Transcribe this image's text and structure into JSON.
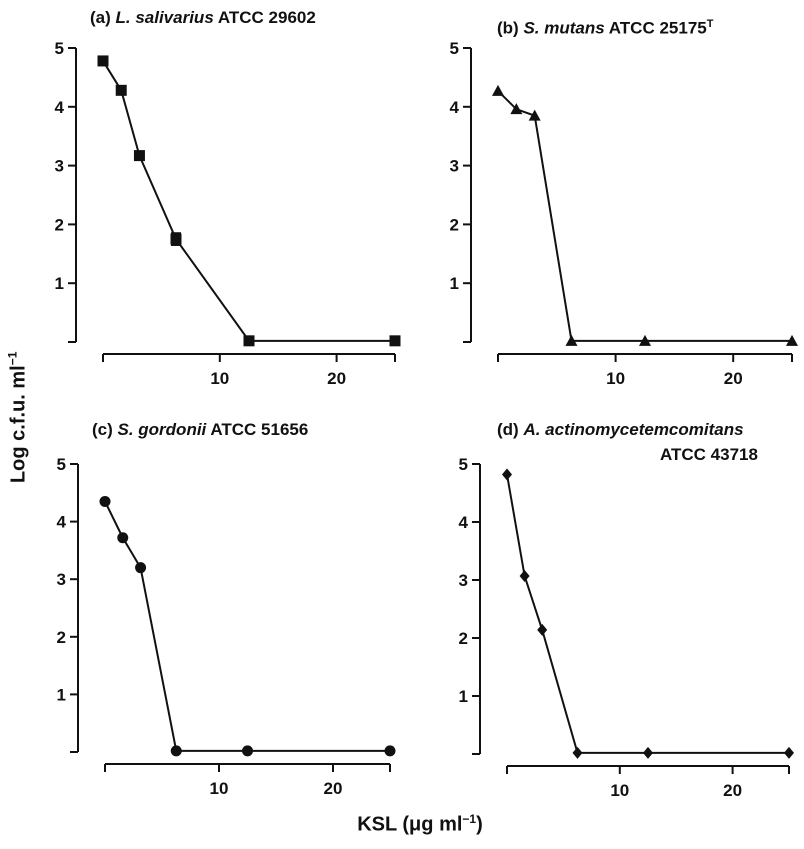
{
  "figure": {
    "ylabel_main": "Log c.f.u. ml",
    "ylabel_sup": "−1",
    "xlabel_main": "KSL  (μg ml",
    "xlabel_sup": "−1",
    "xlabel_close": ")"
  },
  "chart_data": [
    {
      "type": "line",
      "title_prefix": "(a) ",
      "title_species": "L. salivarius",
      "title_strain": " ATCC 29602",
      "title_sup": "",
      "title_line2": "",
      "marker": "square",
      "x": [
        0,
        1.56,
        3.12,
        6.25,
        12.5,
        25
      ],
      "y": [
        4.78,
        4.28,
        3.17,
        1.75,
        0.02,
        0.02
      ],
      "error": [
        0,
        0,
        0,
        0.1,
        0,
        0
      ],
      "xlim": [
        0,
        25
      ],
      "ylim": [
        0,
        5
      ],
      "xticks": [
        10,
        20
      ],
      "yticks": [
        1,
        2,
        3,
        4,
        5
      ]
    },
    {
      "type": "line",
      "title_prefix": "(b) ",
      "title_species": "S. mutans",
      "title_strain": " ATCC 25175",
      "title_sup": "T",
      "title_line2": "",
      "marker": "triangle",
      "x": [
        0,
        1.56,
        3.12,
        6.25,
        12.5,
        25
      ],
      "y": [
        4.27,
        3.96,
        3.85,
        0.02,
        0.02,
        0.02
      ],
      "error": [
        0,
        0,
        0,
        0,
        0,
        0
      ],
      "xlim": [
        0,
        25
      ],
      "ylim": [
        0,
        5
      ],
      "xticks": [
        10,
        20
      ],
      "yticks": [
        1,
        2,
        3,
        4,
        5
      ]
    },
    {
      "type": "line",
      "title_prefix": "(c) ",
      "title_species": "S. gordonii",
      "title_strain": " ATCC 51656",
      "title_sup": "",
      "title_line2": "",
      "marker": "circle",
      "x": [
        0,
        1.56,
        3.12,
        6.25,
        12.5,
        25
      ],
      "y": [
        4.35,
        3.72,
        3.2,
        0.02,
        0.02,
        0.02
      ],
      "error": [
        0,
        0,
        0,
        0,
        0,
        0
      ],
      "xlim": [
        0,
        25
      ],
      "ylim": [
        0,
        5
      ],
      "xticks": [
        10,
        20
      ],
      "yticks": [
        1,
        2,
        3,
        4,
        5
      ]
    },
    {
      "type": "line",
      "title_prefix": "(d) ",
      "title_species": "A. actinomycetemcomitans",
      "title_strain": "",
      "title_sup": "",
      "title_line2": "ATCC 43718",
      "marker": "diamond",
      "x": [
        0,
        1.56,
        3.12,
        6.25,
        12.5,
        25
      ],
      "y": [
        4.82,
        3.07,
        2.14,
        0.02,
        0.02,
        0.02
      ],
      "error": [
        0,
        0,
        0,
        0,
        0,
        0
      ],
      "xlim": [
        0,
        25
      ],
      "ylim": [
        0,
        5
      ],
      "xticks": [
        10,
        20
      ],
      "yticks": [
        1,
        2,
        3,
        4,
        5
      ]
    }
  ]
}
